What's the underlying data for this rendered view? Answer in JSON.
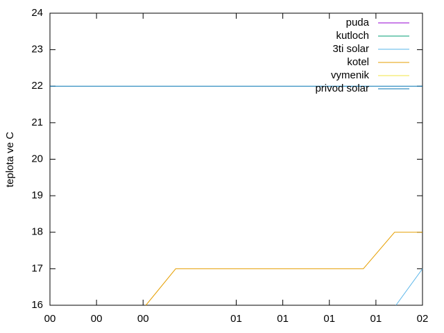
{
  "chart_data": {
    "type": "line",
    "y_label": "teplota ve C",
    "xlim": [
      0,
      8
    ],
    "ylim": [
      16,
      24
    ],
    "xticks": [
      {
        "value": 0,
        "label": "00"
      },
      {
        "value": 1,
        "label": "00"
      },
      {
        "value": 2,
        "label": "00"
      },
      {
        "value": 4,
        "label": "01"
      },
      {
        "value": 5,
        "label": "01"
      },
      {
        "value": 6,
        "label": "01"
      },
      {
        "value": 7,
        "label": "01"
      },
      {
        "value": 8,
        "label": "02"
      }
    ],
    "yticks": [
      16,
      17,
      18,
      19,
      20,
      21,
      22,
      23,
      24
    ],
    "legend": "top-right",
    "series": [
      {
        "name": "puda",
        "color": "#9400d3",
        "x": [],
        "values": []
      },
      {
        "name": "kutloch",
        "color": "#009e73",
        "x": [],
        "values": []
      },
      {
        "name": "3ti solar",
        "color": "#56b4e9",
        "x": [
          7.43,
          8
        ],
        "values": [
          16,
          17
        ]
      },
      {
        "name": "kotel",
        "color": "#e69f00",
        "x": [
          2.06,
          2.7,
          6.73,
          7.4,
          8
        ],
        "values": [
          16,
          17,
          17,
          18,
          18
        ]
      },
      {
        "name": "vymenik",
        "color": "#f0e442",
        "x": [],
        "values": []
      },
      {
        "name": "privod solar",
        "color": "#0072b2",
        "x": [
          0,
          8
        ],
        "values": [
          22,
          22
        ]
      }
    ]
  }
}
